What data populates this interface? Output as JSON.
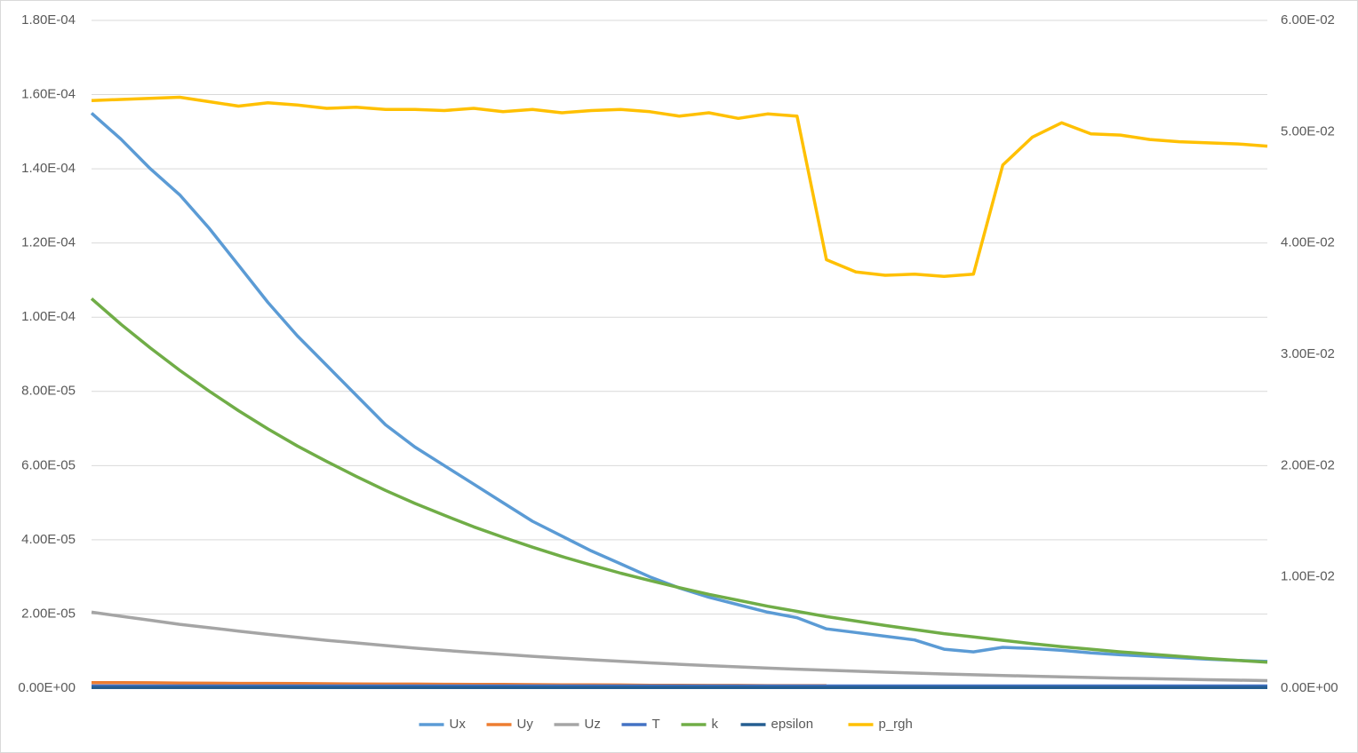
{
  "chart_data": {
    "type": "line",
    "legend": "bottom",
    "grid": true,
    "categories": [
      null,
      null,
      null,
      null,
      null,
      null,
      null,
      null,
      null,
      null,
      null,
      null,
      null,
      null,
      null,
      null,
      null,
      null,
      null,
      null,
      null,
      null,
      null,
      null,
      null,
      null,
      null,
      null,
      null,
      null,
      null,
      null,
      null,
      null,
      null,
      null,
      null,
      null,
      null,
      null,
      null
    ],
    "ylim": [
      0,
      0.00018
    ],
    "yticks": [
      {
        "value": 0,
        "label": "0.00E+00"
      },
      {
        "value": 2e-05,
        "label": "2.00E-05"
      },
      {
        "value": 4e-05,
        "label": "4.00E-05"
      },
      {
        "value": 6e-05,
        "label": "6.00E-05"
      },
      {
        "value": 8e-05,
        "label": "8.00E-05"
      },
      {
        "value": 0.0001,
        "label": "1.00E-04"
      },
      {
        "value": 0.00012,
        "label": "1.20E-04"
      },
      {
        "value": 0.00014,
        "label": "1.40E-04"
      },
      {
        "value": 0.00016,
        "label": "1.60E-04"
      },
      {
        "value": 0.00018,
        "label": "1.80E-04"
      }
    ],
    "y2lim": [
      0,
      0.06
    ],
    "y2ticks": [
      {
        "value": 0,
        "label": "0.00E+00"
      },
      {
        "value": 0.01,
        "label": "1.00E-02"
      },
      {
        "value": 0.02,
        "label": "2.00E-02"
      },
      {
        "value": 0.03,
        "label": "3.00E-02"
      },
      {
        "value": 0.04,
        "label": "4.00E-02"
      },
      {
        "value": 0.05,
        "label": "5.00E-02"
      },
      {
        "value": 0.06,
        "label": "6.00E-02"
      }
    ],
    "series": [
      {
        "name": "Ux",
        "color": "#5b9bd5",
        "values": [
          0.000155,
          0.000148,
          0.00014,
          0.000133,
          0.000124,
          0.000114,
          0.000104,
          9.5e-05,
          8.7e-05,
          7.9e-05,
          7.1e-05,
          6.5e-05,
          6e-05,
          5.5e-05,
          5e-05,
          4.5e-05,
          4.1e-05,
          3.7e-05,
          3.35e-05,
          3e-05,
          2.7e-05,
          2.45e-05,
          2.25e-05,
          2.05e-05,
          1.9e-05,
          1.6e-05,
          1.5e-05,
          1.4e-05,
          1.3e-05,
          1.05e-05,
          9.8e-06,
          1.1e-05,
          1.07e-05,
          1.02e-05,
          9.5e-06,
          9e-06,
          8.6e-06,
          8.2e-06,
          7.8e-06,
          7.5e-06,
          7.2e-06
        ]
      },
      {
        "name": "Uy",
        "color": "#ed7d31",
        "values": [
          1.5e-06,
          1.5e-06,
          1.45e-06,
          1.4e-06,
          1.35e-06,
          1.3e-06,
          1.3e-06,
          1.25e-06,
          1.2e-06,
          1.15e-06,
          1.1e-06,
          1.1e-06,
          1.05e-06,
          1e-06,
          1e-06,
          9.5e-07,
          9e-07,
          9e-07,
          8.5e-07,
          8e-07,
          8e-07,
          7.5e-07,
          7.5e-07,
          7e-07,
          7e-07,
          7e-07,
          null,
          null,
          null,
          null,
          null,
          null,
          null,
          null,
          null,
          null,
          null,
          null,
          null,
          null,
          null
        ]
      },
      {
        "name": "Uz",
        "color": "#a5a5a5",
        "values": [
          2.05e-05,
          1.94e-05,
          1.83e-05,
          1.72e-05,
          1.63e-05,
          1.54e-05,
          1.45e-05,
          1.37e-05,
          1.29e-05,
          1.22e-05,
          1.15e-05,
          1.08e-05,
          1.02e-05,
          9.65e-06,
          9.11e-06,
          8.6e-06,
          8.12e-06,
          7.66e-06,
          7.23e-06,
          6.83e-06,
          6.45e-06,
          6.08e-06,
          5.74e-06,
          5.42e-06,
          5.12e-06,
          4.83e-06,
          4.56e-06,
          4.3e-06,
          4.06e-06,
          3.84e-06,
          3.62e-06,
          3.42e-06,
          3.23e-06,
          3.05e-06,
          2.87e-06,
          2.71e-06,
          2.56e-06,
          2.42e-06,
          2.28e-06,
          2.16e-06,
          2.04e-06
        ]
      },
      {
        "name": "T",
        "color": "#4472c4",
        "values": [
          6e-07,
          6e-07,
          6e-07,
          6e-07,
          6e-07,
          6e-07,
          6e-07,
          6e-07,
          6e-07,
          6e-07,
          6e-07,
          6e-07,
          6e-07,
          6e-07,
          6e-07,
          6e-07,
          6e-07,
          6e-07,
          6e-07,
          6e-07,
          6e-07,
          6e-07,
          6e-07,
          6e-07,
          6e-07,
          6e-07,
          6e-07,
          6e-07,
          6e-07,
          6e-07,
          6e-07,
          6e-07,
          6e-07,
          6e-07,
          6e-07,
          6e-07,
          6e-07,
          6e-07,
          6e-07,
          6e-07,
          6e-07
        ]
      },
      {
        "name": "k",
        "color": "#70ad47",
        "values": [
          0.000105,
          9.81e-05,
          9.17e-05,
          8.57e-05,
          8.01e-05,
          7.48e-05,
          6.99e-05,
          6.53e-05,
          6.11e-05,
          5.71e-05,
          5.33e-05,
          4.98e-05,
          4.66e-05,
          4.35e-05,
          4.07e-05,
          3.8e-05,
          3.55e-05,
          3.32e-05,
          3.1e-05,
          2.9e-05,
          2.71e-05,
          2.53e-05,
          2.37e-05,
          2.21e-05,
          2.07e-05,
          1.93e-05,
          1.81e-05,
          1.69e-05,
          1.58e-05,
          1.47e-05,
          1.38e-05,
          1.29e-05,
          1.2e-05,
          1.12e-05,
          1.05e-05,
          9.8e-06,
          9.2e-06,
          8.6e-06,
          8e-06,
          7.5e-06,
          7e-06
        ]
      },
      {
        "name": "epsilon",
        "color": "#255e91",
        "values": [
          2e-07,
          2e-07,
          2e-07,
          2e-07,
          2e-07,
          2e-07,
          2e-07,
          2e-07,
          2e-07,
          2e-07,
          2e-07,
          2e-07,
          2e-07,
          2e-07,
          2e-07,
          2e-07,
          2e-07,
          2e-07,
          2e-07,
          2e-07,
          2e-07,
          2e-07,
          2e-07,
          2e-07,
          2e-07,
          2e-07,
          2e-07,
          2e-07,
          2e-07,
          2e-07,
          2e-07,
          2e-07,
          2e-07,
          2e-07,
          2e-07,
          2e-07,
          2e-07,
          2e-07,
          2e-07,
          2e-07,
          2e-07
        ]
      },
      {
        "name": "p_rgh",
        "color": "#ffc000",
        "axis": "y2",
        "values": [
          0.0528,
          0.0529,
          0.053,
          0.0531,
          0.0527,
          0.0523,
          0.0526,
          0.0524,
          0.0521,
          0.0522,
          0.052,
          0.052,
          0.0519,
          0.0521,
          0.0518,
          0.052,
          0.0517,
          0.0519,
          0.052,
          0.0518,
          0.0514,
          0.0517,
          0.0512,
          0.0516,
          0.0514,
          0.0385,
          0.0374,
          0.0371,
          0.0372,
          0.037,
          0.0372,
          0.047,
          0.0495,
          0.0508,
          0.0498,
          0.0497,
          0.0493,
          0.0491,
          0.049,
          0.0489,
          0.0487
        ]
      }
    ]
  }
}
